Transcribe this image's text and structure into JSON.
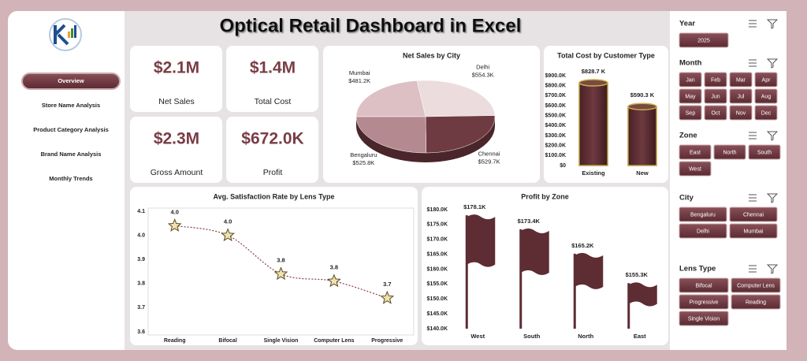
{
  "title": "Optical Retail Dashboard in Excel",
  "nav": [
    "Overview",
    "Store Name Analysis",
    "Product Category Analysis",
    "Brand Name Analysis",
    "Monthly Trends"
  ],
  "kpis": [
    {
      "value": "$2.1M",
      "label": "Net Sales"
    },
    {
      "value": "$1.4M",
      "label": "Total Cost"
    },
    {
      "value": "$2.3M",
      "label": "Gross Amount"
    },
    {
      "value": "$672.0K",
      "label": "Profit"
    }
  ],
  "chart_data": [
    {
      "type": "pie",
      "title": "Net Sales by City",
      "categories": [
        "Mumbai",
        "Delhi",
        "Chennai",
        "Bengaluru"
      ],
      "values": [
        481.2,
        554.3,
        529.7,
        525.8
      ],
      "value_labels": [
        "$481.2K",
        "$554.3K",
        "$529.7K",
        "$525.8K"
      ],
      "colors": [
        "#dcc0c4",
        "#ecdcde",
        "#6e3b42",
        "#b48a90"
      ]
    },
    {
      "type": "bar",
      "shape": "cylinder",
      "title": "Total Cost by Customer Type",
      "categories": [
        "Existing",
        "New"
      ],
      "values": [
        828.7,
        590.3
      ],
      "value_labels": [
        "$828.7 K",
        "$590.3 K"
      ],
      "color": "#5e2c33",
      "ylim": [
        0,
        900
      ],
      "yticks": [
        {
          "value": 0,
          "label": "$0"
        },
        {
          "value": 100,
          "label": "$100.0K"
        },
        {
          "value": 200,
          "label": "$200.0K"
        },
        {
          "value": 300,
          "label": "$300.0K"
        },
        {
          "value": 400,
          "label": "$400.0K"
        },
        {
          "value": 500,
          "label": "$500.0K"
        },
        {
          "value": 600,
          "label": "$600.0K"
        },
        {
          "value": 700,
          "label": "$700.0K"
        },
        {
          "value": 800,
          "label": "$800.0K"
        },
        {
          "value": 900,
          "label": "$900.0K"
        }
      ]
    },
    {
      "type": "line",
      "marker": "star",
      "title": "Avg. Satisfaction Rate by Lens Type",
      "categories": [
        "Reading",
        "Bifocal",
        "Single Vision",
        "Computer Lens",
        "Progressive"
      ],
      "values": [
        4.04,
        4.0,
        3.84,
        3.81,
        3.74
      ],
      "value_labels": [
        "4.0",
        "4.0",
        "3.8",
        "3.8",
        "3.7"
      ],
      "color": "#8a3a44",
      "ylim": [
        3.6,
        4.1
      ],
      "yticks": [
        3.6,
        3.7,
        3.8,
        3.9,
        {
          "value": 4,
          "label": "4.0"
        },
        4.1
      ]
    },
    {
      "type": "bar",
      "shape": "flag",
      "title": "Profit by Zone",
      "categories": [
        "West",
        "South",
        "North",
        "East"
      ],
      "values": [
        178.1,
        173.4,
        165.2,
        155.3
      ],
      "value_labels": [
        "$178.1K",
        "$173.4K",
        "$165.2K",
        "$155.3K"
      ],
      "color": "#5e2c33",
      "ylim": [
        140,
        180
      ],
      "yticks": [
        {
          "value": 140,
          "label": "$140.0K"
        },
        {
          "value": 145,
          "label": "$145.0K"
        },
        {
          "value": 150,
          "label": "$150.0K"
        },
        {
          "value": 155,
          "label": "$155.0K"
        },
        {
          "value": 160,
          "label": "$160.0K"
        },
        {
          "value": 165,
          "label": "$165.0K"
        },
        {
          "value": 170,
          "label": "$170.0K"
        },
        {
          "value": 175,
          "label": "$175.0K"
        },
        {
          "value": 180,
          "label": "$180.0K"
        }
      ]
    }
  ],
  "slicers": [
    {
      "title": "Year",
      "items": [
        "2025"
      ]
    },
    {
      "title": "Month",
      "items": [
        "Jan",
        "Feb",
        "Mar",
        "Apr",
        "May",
        "Jun",
        "Jul",
        "Aug",
        "Sep",
        "Oct",
        "Nov",
        "Dec"
      ]
    },
    {
      "title": "Zone",
      "items": [
        "East",
        "North",
        "South",
        "West"
      ]
    },
    {
      "title": "City",
      "items": [
        "Bengaluru",
        "Chennai",
        "Delhi",
        "Mumbai"
      ]
    },
    {
      "title": "Lens Type",
      "items": [
        "Bifocal",
        "Computer Lens",
        "Progressive",
        "Reading",
        "Single Vision"
      ]
    }
  ]
}
